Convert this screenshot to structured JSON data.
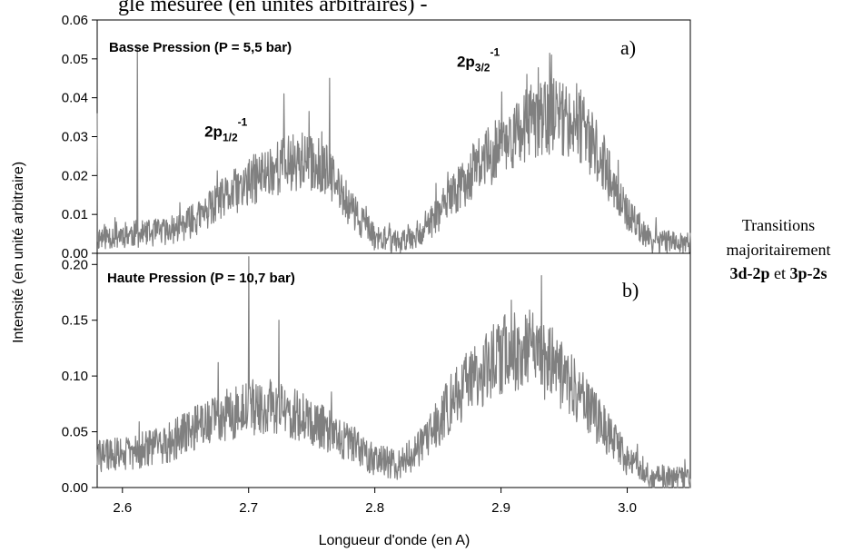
{
  "figure": {
    "top_caption": "gle mesuree (en unités arbitraires) - ",
    "ylabel": "Intensité (en unité arbitraire)",
    "xlabel": "Longueur d'onde (en A)",
    "side_note": {
      "line1": "Transitions",
      "line2": "majoritairement",
      "line3_bold1": "3d-2p",
      "line3_mid": " et ",
      "line3_bold2": "3p-2s"
    }
  },
  "chart_data": [
    {
      "type": "line",
      "panel": "a)",
      "title": "Basse Pression (P = 5,5 bar)",
      "xlim": [
        2.58,
        3.05
      ],
      "ylim": [
        0.0,
        0.06
      ],
      "xticks": [
        "2.6",
        "2.7",
        "2.8",
        "2.9",
        "3.0"
      ],
      "yticks": [
        "0.00",
        "0.01",
        "0.02",
        "0.03",
        "0.04",
        "0.05",
        "0.06"
      ],
      "color": "#808080",
      "annotations": [
        {
          "base": "2p",
          "sub": "1/2",
          "sup": "-1",
          "x": 2.665,
          "y": 0.03
        },
        {
          "base": "2p",
          "sub": "3/2",
          "sup": "-1",
          "x": 2.865,
          "y": 0.048
        }
      ],
      "x": [
        2.58,
        2.6,
        2.62,
        2.64,
        2.66,
        2.68,
        2.7,
        2.72,
        2.74,
        2.76,
        2.78,
        2.8,
        2.82,
        2.84,
        2.86,
        2.88,
        2.9,
        2.92,
        2.94,
        2.96,
        2.98,
        3.0,
        3.02,
        3.05
      ],
      "y": [
        0.004,
        0.005,
        0.005,
        0.006,
        0.009,
        0.014,
        0.018,
        0.022,
        0.024,
        0.022,
        0.012,
        0.004,
        0.003,
        0.006,
        0.014,
        0.022,
        0.028,
        0.033,
        0.036,
        0.034,
        0.024,
        0.01,
        0.003,
        0.003
      ],
      "noise_amplitude": 0.006,
      "peaks": [
        0.036,
        0.041,
        0.051,
        0.053,
        0.045
      ]
    },
    {
      "type": "line",
      "panel": "b)",
      "title": "Haute Pression (P = 10,7 bar)",
      "xlim": [
        2.58,
        3.05
      ],
      "ylim": [
        0.0,
        0.21
      ],
      "xticks": [
        "2.6",
        "2.7",
        "2.8",
        "2.9",
        "3.0"
      ],
      "yticks": [
        "0.00",
        "0.05",
        "0.10",
        "0.15",
        "0.20"
      ],
      "color": "#808080",
      "x": [
        2.58,
        2.6,
        2.62,
        2.64,
        2.66,
        2.68,
        2.7,
        2.72,
        2.74,
        2.76,
        2.78,
        2.8,
        2.82,
        2.84,
        2.86,
        2.88,
        2.9,
        2.92,
        2.94,
        2.96,
        2.98,
        3.0,
        3.02,
        3.05
      ],
      "y": [
        0.028,
        0.03,
        0.035,
        0.042,
        0.055,
        0.065,
        0.072,
        0.07,
        0.065,
        0.055,
        0.04,
        0.025,
        0.02,
        0.04,
        0.075,
        0.1,
        0.12,
        0.125,
        0.11,
        0.085,
        0.055,
        0.025,
        0.01,
        0.008
      ],
      "noise_amplitude": 0.022,
      "peaks": [
        0.112,
        0.168,
        0.207,
        0.19,
        0.15
      ]
    }
  ]
}
